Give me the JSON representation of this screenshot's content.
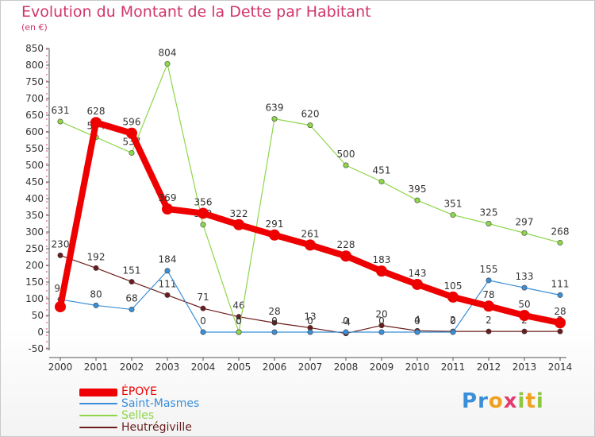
{
  "title": "Evolution du Montant de la Dette par Habitant",
  "subtitle": "(en €)",
  "logo": {
    "letters": [
      "P",
      "r",
      "o",
      "x",
      "i",
      "t",
      "i"
    ],
    "colors": [
      "#3a8fd8",
      "#3a8fd8",
      "#f0a020",
      "#e33b6e",
      "#8ec63f",
      "#f0a020",
      "#8ec63f"
    ]
  },
  "chart_data": {
    "type": "line",
    "x": [
      "2000",
      "2001",
      "2002",
      "2003",
      "2004",
      "2005",
      "2006",
      "2007",
      "2008",
      "2009",
      "2010",
      "2011",
      "2012",
      "2013",
      "2014"
    ],
    "ylim": [
      -50,
      850
    ],
    "yticks": [
      "-50",
      "0",
      "50",
      "100",
      "150",
      "200",
      "250",
      "300",
      "350",
      "400",
      "450",
      "500",
      "550",
      "600",
      "650",
      "700",
      "750",
      "800",
      "850"
    ],
    "grid": false,
    "legend_position": "bottom-left",
    "series": [
      {
        "name": "Heutrégiville",
        "color": "#6b1c1c",
        "width": 1.2,
        "values": [
          230,
          192,
          151,
          111,
          71,
          46,
          28,
          13,
          -4,
          20,
          4,
          2,
          2,
          2,
          2
        ],
        "labels": [
          "230",
          "192",
          "151",
          "111",
          "71",
          "46",
          "28",
          "13",
          "-4",
          "20",
          "4",
          "2",
          "2",
          "2",
          "2"
        ]
      },
      {
        "name": "Saint-Masmes",
        "color": "#3a8fd8",
        "width": 1.2,
        "values": [
          98,
          80,
          68,
          184,
          0,
          0,
          0,
          0,
          0,
          0,
          0,
          0,
          155,
          133,
          111
        ],
        "labels": [
          "98",
          "80",
          "68",
          "184",
          "0",
          "0",
          "0",
          "0",
          "0",
          "0",
          "0",
          "0",
          "155",
          "133",
          "111"
        ]
      },
      {
        "name": "Selles",
        "color": "#8ed64a",
        "width": 1.2,
        "values": [
          631,
          584,
          537,
          804,
          322,
          0,
          639,
          620,
          500,
          451,
          395,
          351,
          325,
          297,
          268
        ],
        "labels": [
          "631",
          "584",
          "537",
          "804",
          "322",
          "0",
          "639",
          "620",
          "500",
          "451",
          "395",
          "351",
          "325",
          "297",
          "268"
        ]
      },
      {
        "name": "ÉPOYE",
        "color": "#ee0000",
        "width": 8,
        "values": [
          76,
          628,
          596,
          369,
          356,
          322,
          291,
          261,
          228,
          183,
          143,
          105,
          78,
          50,
          28
        ],
        "labels": [
          "",
          "628",
          "596",
          "369",
          "356",
          "322",
          "291",
          "261",
          "228",
          "183",
          "143",
          "105",
          "78",
          "50",
          "28"
        ]
      }
    ]
  },
  "legend": [
    {
      "name": "ÉPOYE",
      "color": "#ee0000"
    },
    {
      "name": "Saint-Masmes",
      "color": "#3a8fd8"
    },
    {
      "name": "Selles",
      "color": "#8ed64a"
    },
    {
      "name": "Heutrégiville",
      "color": "#6b1c1c"
    }
  ]
}
